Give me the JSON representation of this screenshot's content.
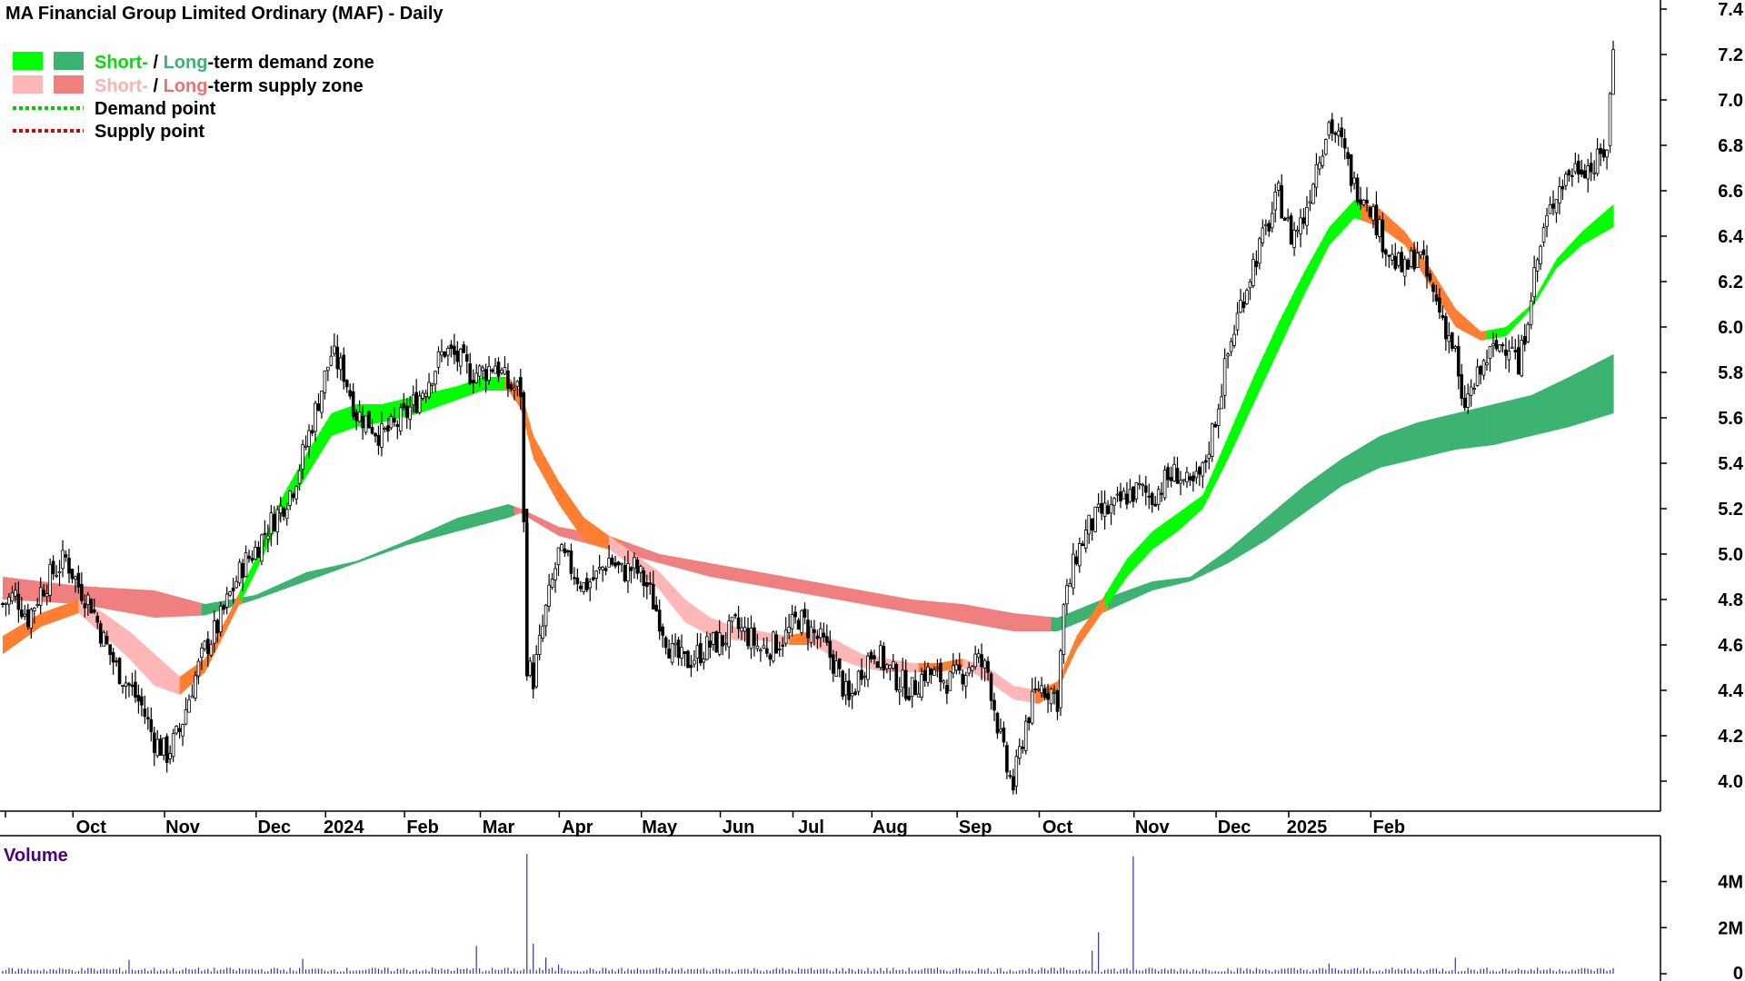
{
  "chart_data": {
    "type": "candlestick",
    "title": "MA Financial Group Limited Ordinary (MAF) - Daily",
    "y_ticks": [
      "7.4",
      "7.2",
      "7.0",
      "6.8",
      "6.6",
      "6.4",
      "6.2",
      "6.0",
      "5.8",
      "5.6",
      "5.4",
      "5.2",
      "5.0",
      "4.8",
      "4.6",
      "4.4",
      "4.2",
      "4.0"
    ],
    "y_tick_values": [
      7.4,
      7.2,
      7.0,
      6.8,
      6.6,
      6.4,
      6.2,
      6.0,
      5.8,
      5.6,
      5.4,
      5.2,
      5.0,
      4.8,
      4.6,
      4.4,
      4.2,
      4.0
    ],
    "ylim": [
      3.86,
      7.46
    ],
    "x_ticks": [
      "Oct",
      "Nov",
      "Dec",
      "2024",
      "Feb",
      "Mar",
      "Apr",
      "May",
      "Jun",
      "Jul",
      "Aug",
      "Sep",
      "Oct",
      "Nov",
      "Dec",
      "2025",
      "Feb"
    ],
    "legend": {
      "short": "Short-",
      "slash": " / ",
      "long": "Long",
      "demand_suffix": "-term demand zone",
      "supply_suffix": "-term supply zone",
      "demand_point": "Demand point",
      "supply_point": "Supply point"
    },
    "colors": {
      "short_demand": "#00ff00",
      "long_demand": "#3cb371",
      "short_supply": "#ffb6b6",
      "long_supply": "#f08080",
      "transition_zone": "#ff7f32",
      "demand_point": "#00cc00",
      "supply_point": "#dd0000",
      "candle": "#000000",
      "volume": "#3333aa"
    },
    "price_anchors": [
      [
        0,
        4.78
      ],
      [
        4,
        4.82
      ],
      [
        8,
        4.72
      ],
      [
        12,
        4.84
      ],
      [
        16,
        4.92
      ],
      [
        20,
        4.98
      ],
      [
        24,
        4.86
      ],
      [
        28,
        4.78
      ],
      [
        32,
        4.62
      ],
      [
        36,
        4.5
      ],
      [
        40,
        4.42
      ],
      [
        44,
        4.33
      ],
      [
        48,
        4.18
      ],
      [
        52,
        4.12
      ],
      [
        56,
        4.22
      ],
      [
        60,
        4.42
      ],
      [
        64,
        4.58
      ],
      [
        68,
        4.68
      ],
      [
        72,
        4.82
      ],
      [
        76,
        4.95
      ],
      [
        80,
        5.02
      ],
      [
        84,
        5.12
      ],
      [
        88,
        5.2
      ],
      [
        92,
        5.3
      ],
      [
        96,
        5.48
      ],
      [
        100,
        5.68
      ],
      [
        104,
        5.88
      ],
      [
        108,
        5.8
      ],
      [
        112,
        5.62
      ],
      [
        116,
        5.58
      ],
      [
        120,
        5.52
      ],
      [
        124,
        5.56
      ],
      [
        128,
        5.62
      ],
      [
        132,
        5.7
      ],
      [
        136,
        5.8
      ],
      [
        140,
        5.9
      ],
      [
        144,
        5.86
      ],
      [
        148,
        5.8
      ],
      [
        152,
        5.8
      ],
      [
        156,
        5.84
      ],
      [
        160,
        5.74
      ],
      [
        164,
        5.72
      ],
      [
        166,
        4.52
      ],
      [
        168,
        4.45
      ],
      [
        172,
        4.75
      ],
      [
        176,
        5.0
      ],
      [
        180,
        4.94
      ],
      [
        184,
        4.86
      ],
      [
        188,
        4.9
      ],
      [
        192,
        4.98
      ],
      [
        196,
        4.92
      ],
      [
        200,
        4.94
      ],
      [
        204,
        4.86
      ],
      [
        208,
        4.72
      ],
      [
        212,
        4.56
      ],
      [
        216,
        4.52
      ],
      [
        220,
        4.56
      ],
      [
        224,
        4.6
      ],
      [
        228,
        4.62
      ],
      [
        232,
        4.68
      ],
      [
        236,
        4.64
      ],
      [
        240,
        4.58
      ],
      [
        244,
        4.6
      ],
      [
        248,
        4.64
      ],
      [
        252,
        4.72
      ],
      [
        256,
        4.66
      ],
      [
        260,
        4.6
      ],
      [
        264,
        4.5
      ],
      [
        268,
        4.34
      ],
      [
        272,
        4.5
      ],
      [
        276,
        4.58
      ],
      [
        280,
        4.5
      ],
      [
        284,
        4.44
      ],
      [
        288,
        4.4
      ],
      [
        292,
        4.48
      ],
      [
        296,
        4.46
      ],
      [
        300,
        4.44
      ],
      [
        304,
        4.48
      ],
      [
        308,
        4.54
      ],
      [
        312,
        4.48
      ],
      [
        316,
        4.18
      ],
      [
        318,
        4.05
      ],
      [
        320,
        3.98
      ],
      [
        324,
        4.26
      ],
      [
        328,
        4.42
      ],
      [
        332,
        4.4
      ],
      [
        334,
        4.36
      ],
      [
        336,
        4.76
      ],
      [
        340,
        5.0
      ],
      [
        344,
        5.12
      ],
      [
        348,
        5.18
      ],
      [
        352,
        5.2
      ],
      [
        356,
        5.26
      ],
      [
        360,
        5.28
      ],
      [
        364,
        5.25
      ],
      [
        368,
        5.32
      ],
      [
        372,
        5.36
      ],
      [
        376,
        5.28
      ],
      [
        380,
        5.36
      ],
      [
        384,
        5.6
      ],
      [
        388,
        5.88
      ],
      [
        392,
        6.1
      ],
      [
        396,
        6.28
      ],
      [
        400,
        6.42
      ],
      [
        404,
        6.58
      ],
      [
        408,
        6.4
      ],
      [
        412,
        6.48
      ],
      [
        416,
        6.72
      ],
      [
        420,
        6.9
      ],
      [
        424,
        6.8
      ],
      [
        428,
        6.62
      ],
      [
        432,
        6.58
      ],
      [
        436,
        6.42
      ],
      [
        440,
        6.3
      ],
      [
        444,
        6.24
      ],
      [
        448,
        6.34
      ],
      [
        452,
        6.18
      ],
      [
        456,
        6.04
      ],
      [
        460,
        5.88
      ],
      [
        462,
        5.64
      ],
      [
        466,
        5.74
      ],
      [
        470,
        5.86
      ],
      [
        474,
        5.92
      ],
      [
        478,
        5.94
      ],
      [
        480,
        5.8
      ],
      [
        484,
        6.16
      ],
      [
        488,
        6.42
      ],
      [
        492,
        6.6
      ],
      [
        496,
        6.68
      ],
      [
        500,
        6.72
      ],
      [
        504,
        6.7
      ],
      [
        508,
        6.8
      ],
      [
        510,
        7.22
      ]
    ],
    "short_zone": [
      [
        0,
        4.56,
        4.64
      ],
      [
        12,
        4.68,
        4.74
      ],
      [
        24,
        4.74,
        4.8
      ],
      [
        32,
        4.64,
        4.74
      ],
      [
        40,
        4.54,
        4.66
      ],
      [
        48,
        4.42,
        4.56
      ],
      [
        56,
        4.38,
        4.46
      ],
      [
        64,
        4.48,
        4.54
      ],
      [
        72,
        4.7,
        4.75
      ],
      [
        80,
        4.92,
        4.98
      ],
      [
        88,
        5.16,
        5.24
      ],
      [
        96,
        5.34,
        5.44
      ],
      [
        104,
        5.52,
        5.62
      ],
      [
        112,
        5.56,
        5.66
      ],
      [
        120,
        5.58,
        5.66
      ],
      [
        132,
        5.62,
        5.7
      ],
      [
        144,
        5.68,
        5.74
      ],
      [
        152,
        5.72,
        5.78
      ],
      [
        160,
        5.72,
        5.78
      ],
      [
        164,
        5.64,
        5.72
      ],
      [
        168,
        5.42,
        5.52
      ],
      [
        176,
        5.22,
        5.32
      ],
      [
        184,
        5.06,
        5.16
      ],
      [
        192,
        5.02,
        5.08
      ],
      [
        200,
        4.94,
        5.0
      ],
      [
        208,
        4.84,
        4.92
      ],
      [
        216,
        4.7,
        4.8
      ],
      [
        224,
        4.64,
        4.72
      ],
      [
        232,
        4.62,
        4.68
      ],
      [
        240,
        4.62,
        4.66
      ],
      [
        248,
        4.6,
        4.64
      ],
      [
        256,
        4.6,
        4.66
      ],
      [
        264,
        4.54,
        4.62
      ],
      [
        272,
        4.5,
        4.56
      ],
      [
        280,
        4.48,
        4.54
      ],
      [
        288,
        4.48,
        4.52
      ],
      [
        296,
        4.48,
        4.52
      ],
      [
        304,
        4.5,
        4.54
      ],
      [
        312,
        4.44,
        4.5
      ],
      [
        320,
        4.36,
        4.42
      ],
      [
        328,
        4.34,
        4.4
      ],
      [
        334,
        4.4,
        4.44
      ],
      [
        340,
        4.58,
        4.64
      ],
      [
        348,
        4.74,
        4.8
      ],
      [
        356,
        4.9,
        4.98
      ],
      [
        364,
        5.02,
        5.1
      ],
      [
        372,
        5.1,
        5.18
      ],
      [
        380,
        5.2,
        5.26
      ],
      [
        388,
        5.42,
        5.52
      ],
      [
        396,
        5.66,
        5.78
      ],
      [
        404,
        5.9,
        6.02
      ],
      [
        412,
        6.14,
        6.24
      ],
      [
        420,
        6.36,
        6.44
      ],
      [
        428,
        6.48,
        6.56
      ],
      [
        436,
        6.44,
        6.52
      ],
      [
        444,
        6.36,
        6.42
      ],
      [
        452,
        6.18,
        6.26
      ],
      [
        460,
        6.0,
        6.08
      ],
      [
        468,
        5.94,
        5.98
      ],
      [
        476,
        5.96,
        6.0
      ],
      [
        484,
        6.08,
        6.1
      ],
      [
        492,
        6.26,
        6.3
      ],
      [
        500,
        6.36,
        6.42
      ],
      [
        510,
        6.44,
        6.54
      ]
    ],
    "long_zone": [
      [
        0,
        4.8,
        4.9
      ],
      [
        24,
        4.78,
        4.86
      ],
      [
        48,
        4.72,
        4.84
      ],
      [
        64,
        4.73,
        4.78
      ],
      [
        80,
        4.8,
        4.82
      ],
      [
        96,
        4.88,
        4.92
      ],
      [
        112,
        4.96,
        4.97
      ],
      [
        128,
        5.04,
        5.06
      ],
      [
        144,
        5.1,
        5.16
      ],
      [
        160,
        5.16,
        5.22
      ],
      [
        164,
        5.18,
        5.2
      ],
      [
        176,
        5.08,
        5.12
      ],
      [
        192,
        5.02,
        5.08
      ],
      [
        208,
        4.96,
        5.0
      ],
      [
        224,
        4.9,
        4.96
      ],
      [
        240,
        4.86,
        4.92
      ],
      [
        256,
        4.82,
        4.88
      ],
      [
        272,
        4.78,
        4.84
      ],
      [
        288,
        4.74,
        4.8
      ],
      [
        304,
        4.7,
        4.78
      ],
      [
        320,
        4.66,
        4.74
      ],
      [
        334,
        4.66,
        4.72
      ],
      [
        348,
        4.74,
        4.8
      ],
      [
        364,
        4.84,
        4.88
      ],
      [
        376,
        4.88,
        4.9
      ],
      [
        388,
        4.96,
        5.02
      ],
      [
        400,
        5.06,
        5.16
      ],
      [
        412,
        5.18,
        5.3
      ],
      [
        424,
        5.3,
        5.42
      ],
      [
        436,
        5.38,
        5.52
      ],
      [
        448,
        5.42,
        5.58
      ],
      [
        460,
        5.46,
        5.62
      ],
      [
        472,
        5.48,
        5.66
      ],
      [
        484,
        5.52,
        5.7
      ],
      [
        496,
        5.56,
        5.78
      ],
      [
        510,
        5.62,
        5.88
      ]
    ],
    "volume": {
      "label": "Volume",
      "y_ticks": [
        "4M",
        "2M",
        "0"
      ],
      "y_tick_values": [
        4000000,
        2000000,
        0
      ],
      "ylim": [
        0,
        5400000
      ],
      "spikes": [
        [
          40,
          600000
        ],
        [
          95,
          650000
        ],
        [
          150,
          1200000
        ],
        [
          166,
          5200000
        ],
        [
          168,
          1300000
        ],
        [
          172,
          700000
        ],
        [
          176,
          400000
        ],
        [
          345,
          1000000
        ],
        [
          347,
          1800000
        ],
        [
          358,
          5100000
        ],
        [
          420,
          450000
        ],
        [
          460,
          700000
        ]
      ],
      "base": 180000
    }
  }
}
